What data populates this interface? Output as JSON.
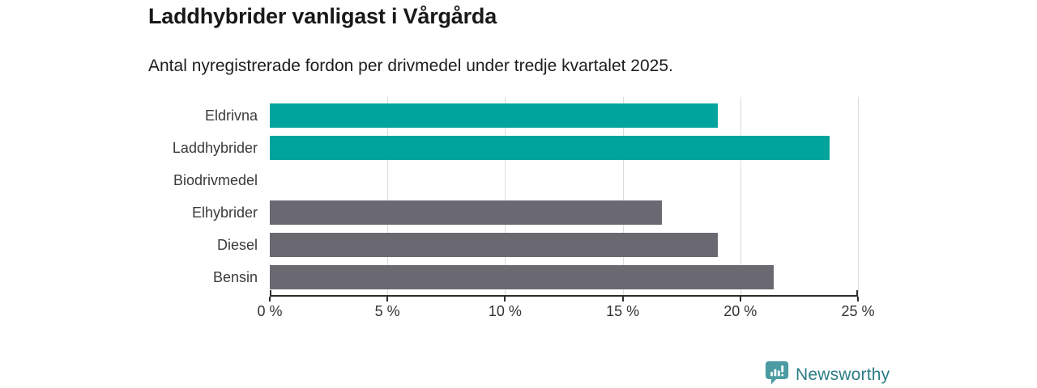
{
  "title": "Laddhybrider vanligast i Vårgårda",
  "subtitle": "Antal nyregistrerade fordon per drivmedel under tredje kvartalet 2025.",
  "chart_data": {
    "type": "bar",
    "orientation": "horizontal",
    "title": "Laddhybrider vanligast i Vårgårda",
    "subtitle": "Antal nyregistrerade fordon per drivmedel under tredje kvartalet 2025.",
    "categories": [
      "Eldrivna",
      "Laddhybrider",
      "Biodrivmedel",
      "Elhybrider",
      "Diesel",
      "Bensin"
    ],
    "values": [
      19.05,
      23.81,
      0,
      16.67,
      19.05,
      21.43
    ],
    "unit": "%",
    "xlim": [
      0,
      25
    ],
    "x_tick_values": [
      0,
      5,
      10,
      15,
      20,
      25
    ],
    "x_tick_labels": [
      "0 %",
      "5 %",
      "10 %",
      "15 %",
      "20 %",
      "25 %"
    ],
    "grid": true,
    "legend": false,
    "bar_colors": [
      "#00a49c",
      "#00a49c",
      "#6a6870",
      "#6a6870",
      "#6a6870",
      "#6a6870"
    ],
    "highlight_color": "#00a49c",
    "default_color": "#6a6870",
    "gridline_color": "#dcdcdc",
    "axis_color": "#2d2d2d"
  },
  "footer": {
    "brand": "Newsworthy",
    "logo_icon": "newsworthy-chart-bubble-icon",
    "icon_color": "#4a9ca2",
    "brand_text_color": "#2c7d85"
  }
}
